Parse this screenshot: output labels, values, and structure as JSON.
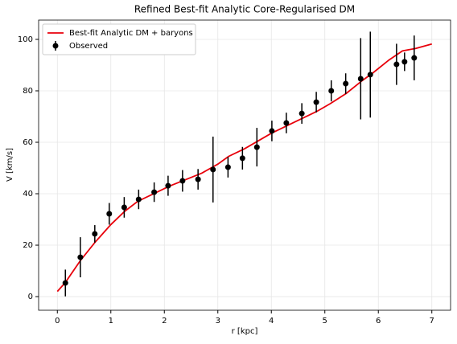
{
  "chart_data": {
    "type": "line",
    "title": "Refined Best-fit Analytic Core-Regularised DM",
    "x_label": "r [kpc]",
    "y_label": "V [km/s]",
    "xlim": [
      -0.35,
      7.35
    ],
    "ylim": [
      -5.3,
      107.5
    ],
    "xticks": [
      0,
      1,
      2,
      3,
      4,
      5,
      6,
      7
    ],
    "yticks": [
      0,
      20,
      40,
      60,
      80,
      100
    ],
    "grid": true,
    "legend": "upper left",
    "series": [
      {
        "name": "Best-fit Analytic DM + baryons",
        "color": "#e8000b",
        "type": "line",
        "x": [
          0,
          0.15,
          0.43,
          0.7,
          1.0,
          1.25,
          1.5,
          1.8,
          2.1,
          2.4,
          2.7,
          3.0,
          3.2,
          3.5,
          3.75,
          4.0,
          4.3,
          4.6,
          4.85,
          5.1,
          5.4,
          5.7,
          5.9,
          6.2,
          6.45,
          6.7,
          7.0
        ],
        "values": [
          2,
          5.5,
          14,
          21,
          28,
          33,
          37,
          40,
          43,
          45.5,
          48,
          51.5,
          54.5,
          57.5,
          60.5,
          63.5,
          66.5,
          69.5,
          72,
          75,
          79,
          84,
          87,
          92,
          95.5,
          96.5,
          98.2
        ]
      },
      {
        "name": "Observed",
        "color": "#000000",
        "type": "errorbar",
        "x": [
          0.15,
          0.43,
          0.7,
          0.97,
          1.25,
          1.52,
          1.81,
          2.07,
          2.34,
          2.63,
          2.91,
          3.19,
          3.46,
          3.73,
          4.01,
          4.28,
          4.57,
          4.84,
          5.12,
          5.39,
          5.67,
          5.85,
          6.34,
          6.49,
          6.67
        ],
        "values": [
          5.3,
          15.3,
          24.4,
          32.2,
          34.7,
          37.8,
          40.6,
          43.1,
          45,
          45.6,
          49.4,
          50.3,
          53.8,
          58.1,
          64.4,
          67.5,
          71.2,
          75.6,
          80,
          82.8,
          84.7,
          86.3,
          90.3,
          91.3,
          92.8
        ],
        "errors": [
          5.2,
          7.8,
          3.4,
          4.2,
          4,
          3.8,
          3.8,
          3.9,
          4.2,
          4,
          12.8,
          4,
          4.4,
          7.5,
          4,
          4,
          4,
          4,
          4.1,
          4,
          15.8,
          16.7,
          8,
          3.6,
          8.7
        ]
      }
    ]
  }
}
